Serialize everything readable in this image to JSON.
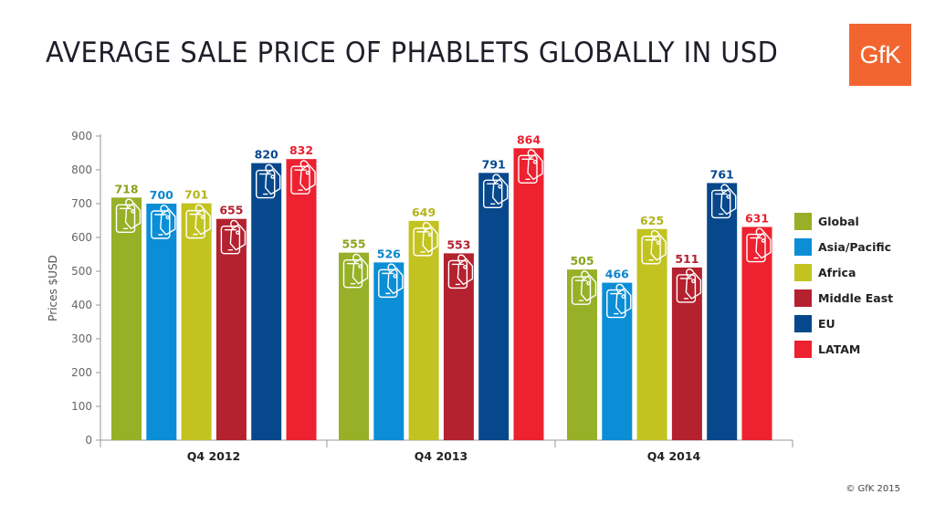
{
  "title": "AVERAGE SALE PRICE OF PHABLETS GLOBALLY IN USD",
  "logo_text": "GfK",
  "brand_color": "#f26530",
  "copyright": "© GfK 2015",
  "chart_data": {
    "type": "bar",
    "title": "AVERAGE SALE PRICE OF PHABLETS GLOBALLY IN USD",
    "xlabel": "",
    "ylabel": "Prices $USD",
    "ylim": [
      0,
      900
    ],
    "yticks": [
      0,
      100,
      200,
      300,
      400,
      500,
      600,
      700,
      800,
      900
    ],
    "grid": false,
    "legend_position": "right",
    "categories": [
      "Q4 2012",
      "Q4 2013",
      "Q4 2014"
    ],
    "series": [
      {
        "name": "Global",
        "color": "#97b027",
        "label_color": "#8aa31e",
        "values": [
          718,
          555,
          505
        ]
      },
      {
        "name": "Asia/Pacific",
        "color": "#0b8ed6",
        "label_color": "#0b86cc",
        "values": [
          700,
          526,
          466
        ]
      },
      {
        "name": "Africa",
        "color": "#c2c320",
        "label_color": "#b3b41a",
        "values": [
          701,
          649,
          625
        ]
      },
      {
        "name": "Middle East",
        "color": "#b4212f",
        "label_color": "#b4212f",
        "values": [
          655,
          553,
          511
        ]
      },
      {
        "name": "EU",
        "color": "#07488c",
        "label_color": "#07488c",
        "values": [
          820,
          791,
          761
        ]
      },
      {
        "name": "LATAM",
        "color": "#ee2130",
        "label_color": "#e8202e",
        "values": [
          832,
          864,
          631
        ]
      }
    ]
  }
}
